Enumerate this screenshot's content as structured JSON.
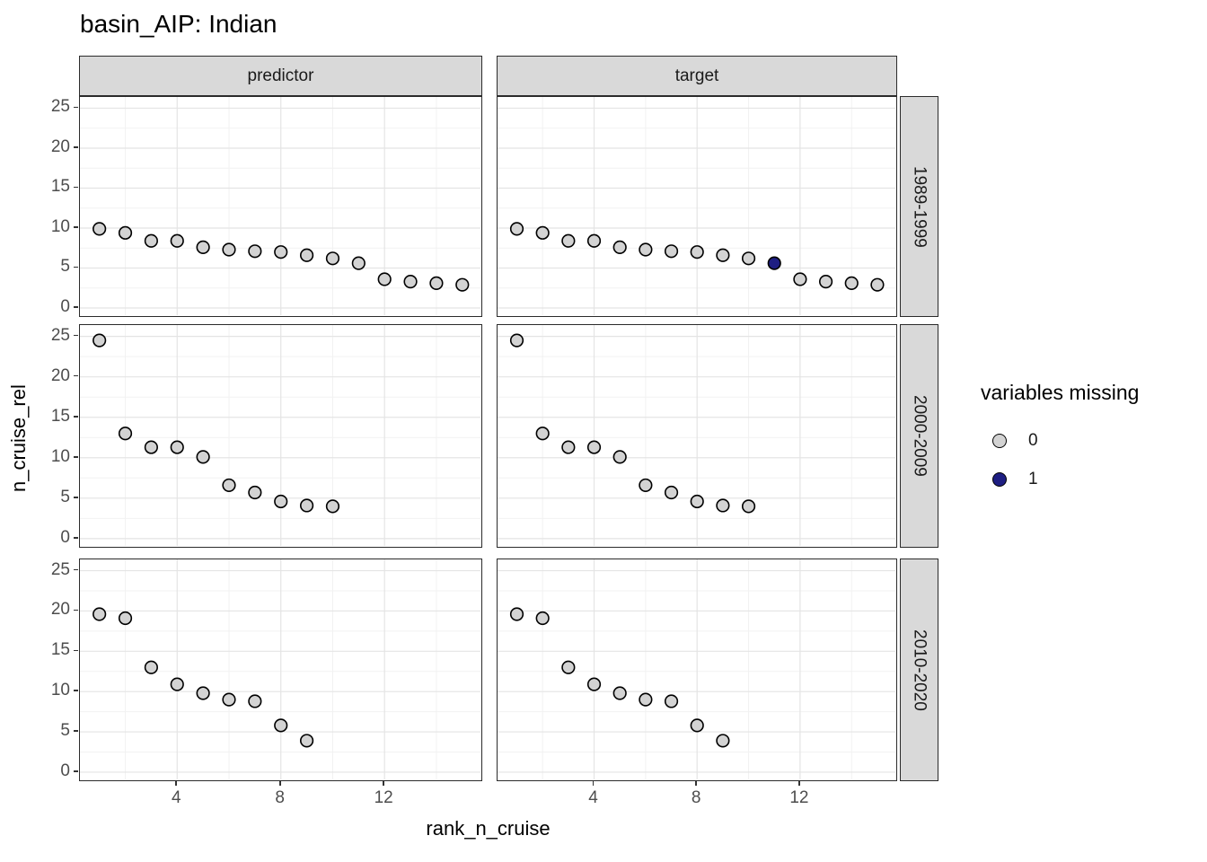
{
  "title": "basin_AIP: Indian",
  "axes": {
    "x_title": "rank_n_cruise",
    "y_title": "n_cruise_rel"
  },
  "legend": {
    "title": "variables missing",
    "entries": [
      {
        "label": "0",
        "value": 0,
        "color": "#d3d3d3"
      },
      {
        "label": "1",
        "value": 1,
        "color": "#1e1e82"
      }
    ]
  },
  "colors": {
    "point_fill_0": "#d3d3d3",
    "point_fill_1": "#1e1e82",
    "point_stroke": "#000000",
    "strip_fill": "#d9d9d9",
    "panel_border": "#2b2b2b",
    "grid_major": "#e4e4e4",
    "grid_minor": "#f2f2f2",
    "tick_text": "#4d4d4d"
  },
  "chart_data": {
    "type": "scatter",
    "title": "basin_AIP: Indian",
    "xlabel": "rank_n_cruise",
    "ylabel": "n_cruise_rel",
    "facet_cols": [
      "predictor",
      "target"
    ],
    "facet_rows": [
      "1989-1999",
      "2000-2009",
      "2010-2020"
    ],
    "x_ticks": [
      4,
      8,
      12
    ],
    "x_minor": [
      2,
      6,
      10,
      14
    ],
    "y_ticks": [
      0,
      5,
      10,
      15,
      20,
      25
    ],
    "y_minor": [
      2.5,
      7.5,
      12.5,
      17.5,
      22.5
    ],
    "xlim": [
      0.25,
      15.7
    ],
    "ylim": [
      -0.9,
      26.4
    ],
    "grid": true,
    "legend_position": "right",
    "legend_title": "variables missing",
    "panels": [
      {
        "facet_col": "predictor",
        "facet_row": "1989-1999",
        "points": [
          {
            "x": 1,
            "y": 9.9,
            "missing": 0
          },
          {
            "x": 2,
            "y": 9.4,
            "missing": 0
          },
          {
            "x": 3,
            "y": 8.4,
            "missing": 0
          },
          {
            "x": 4,
            "y": 8.4,
            "missing": 0
          },
          {
            "x": 5,
            "y": 7.6,
            "missing": 0
          },
          {
            "x": 6,
            "y": 7.3,
            "missing": 0
          },
          {
            "x": 7,
            "y": 7.1,
            "missing": 0
          },
          {
            "x": 8,
            "y": 7.0,
            "missing": 0
          },
          {
            "x": 9,
            "y": 6.6,
            "missing": 0
          },
          {
            "x": 10,
            "y": 6.2,
            "missing": 0
          },
          {
            "x": 11,
            "y": 5.6,
            "missing": 0
          },
          {
            "x": 12,
            "y": 3.6,
            "missing": 0
          },
          {
            "x": 13,
            "y": 3.3,
            "missing": 0
          },
          {
            "x": 14,
            "y": 3.1,
            "missing": 0
          },
          {
            "x": 15,
            "y": 2.9,
            "missing": 0
          }
        ]
      },
      {
        "facet_col": "target",
        "facet_row": "1989-1999",
        "points": [
          {
            "x": 1,
            "y": 9.9,
            "missing": 0
          },
          {
            "x": 2,
            "y": 9.4,
            "missing": 0
          },
          {
            "x": 3,
            "y": 8.4,
            "missing": 0
          },
          {
            "x": 4,
            "y": 8.4,
            "missing": 0
          },
          {
            "x": 5,
            "y": 7.6,
            "missing": 0
          },
          {
            "x": 6,
            "y": 7.3,
            "missing": 0
          },
          {
            "x": 7,
            "y": 7.1,
            "missing": 0
          },
          {
            "x": 8,
            "y": 7.0,
            "missing": 0
          },
          {
            "x": 9,
            "y": 6.6,
            "missing": 0
          },
          {
            "x": 10,
            "y": 6.2,
            "missing": 0
          },
          {
            "x": 11,
            "y": 5.6,
            "missing": 1
          },
          {
            "x": 12,
            "y": 3.6,
            "missing": 0
          },
          {
            "x": 13,
            "y": 3.3,
            "missing": 0
          },
          {
            "x": 14,
            "y": 3.1,
            "missing": 0
          },
          {
            "x": 15,
            "y": 2.9,
            "missing": 0
          }
        ]
      },
      {
        "facet_col": "predictor",
        "facet_row": "2000-2009",
        "points": [
          {
            "x": 1,
            "y": 24.5,
            "missing": 0
          },
          {
            "x": 2,
            "y": 13.0,
            "missing": 0
          },
          {
            "x": 3,
            "y": 11.3,
            "missing": 0
          },
          {
            "x": 4,
            "y": 11.3,
            "missing": 0
          },
          {
            "x": 5,
            "y": 10.1,
            "missing": 0
          },
          {
            "x": 6,
            "y": 6.6,
            "missing": 0
          },
          {
            "x": 7,
            "y": 5.7,
            "missing": 0
          },
          {
            "x": 8,
            "y": 4.6,
            "missing": 0
          },
          {
            "x": 9,
            "y": 4.1,
            "missing": 0
          },
          {
            "x": 10,
            "y": 4.0,
            "missing": 0
          }
        ]
      },
      {
        "facet_col": "target",
        "facet_row": "2000-2009",
        "points": [
          {
            "x": 1,
            "y": 24.5,
            "missing": 0
          },
          {
            "x": 2,
            "y": 13.0,
            "missing": 0
          },
          {
            "x": 3,
            "y": 11.3,
            "missing": 0
          },
          {
            "x": 4,
            "y": 11.3,
            "missing": 0
          },
          {
            "x": 5,
            "y": 10.1,
            "missing": 0
          },
          {
            "x": 6,
            "y": 6.6,
            "missing": 0
          },
          {
            "x": 7,
            "y": 5.7,
            "missing": 0
          },
          {
            "x": 8,
            "y": 4.6,
            "missing": 0
          },
          {
            "x": 9,
            "y": 4.1,
            "missing": 0
          },
          {
            "x": 10,
            "y": 4.0,
            "missing": 0
          }
        ]
      },
      {
        "facet_col": "predictor",
        "facet_row": "2010-2020",
        "points": [
          {
            "x": 1,
            "y": 19.6,
            "missing": 0
          },
          {
            "x": 2,
            "y": 19.1,
            "missing": 0
          },
          {
            "x": 3,
            "y": 13.0,
            "missing": 0
          },
          {
            "x": 4,
            "y": 10.9,
            "missing": 0
          },
          {
            "x": 5,
            "y": 9.8,
            "missing": 0
          },
          {
            "x": 6,
            "y": 9.0,
            "missing": 0
          },
          {
            "x": 7,
            "y": 8.8,
            "missing": 0
          },
          {
            "x": 8,
            "y": 5.8,
            "missing": 0
          },
          {
            "x": 9,
            "y": 3.9,
            "missing": 0
          }
        ]
      },
      {
        "facet_col": "target",
        "facet_row": "2010-2020",
        "points": [
          {
            "x": 1,
            "y": 19.6,
            "missing": 0
          },
          {
            "x": 2,
            "y": 19.1,
            "missing": 0
          },
          {
            "x": 3,
            "y": 13.0,
            "missing": 0
          },
          {
            "x": 4,
            "y": 10.9,
            "missing": 0
          },
          {
            "x": 5,
            "y": 9.8,
            "missing": 0
          },
          {
            "x": 6,
            "y": 9.0,
            "missing": 0
          },
          {
            "x": 7,
            "y": 8.8,
            "missing": 0
          },
          {
            "x": 8,
            "y": 5.8,
            "missing": 0
          },
          {
            "x": 9,
            "y": 3.9,
            "missing": 0
          }
        ]
      }
    ]
  }
}
